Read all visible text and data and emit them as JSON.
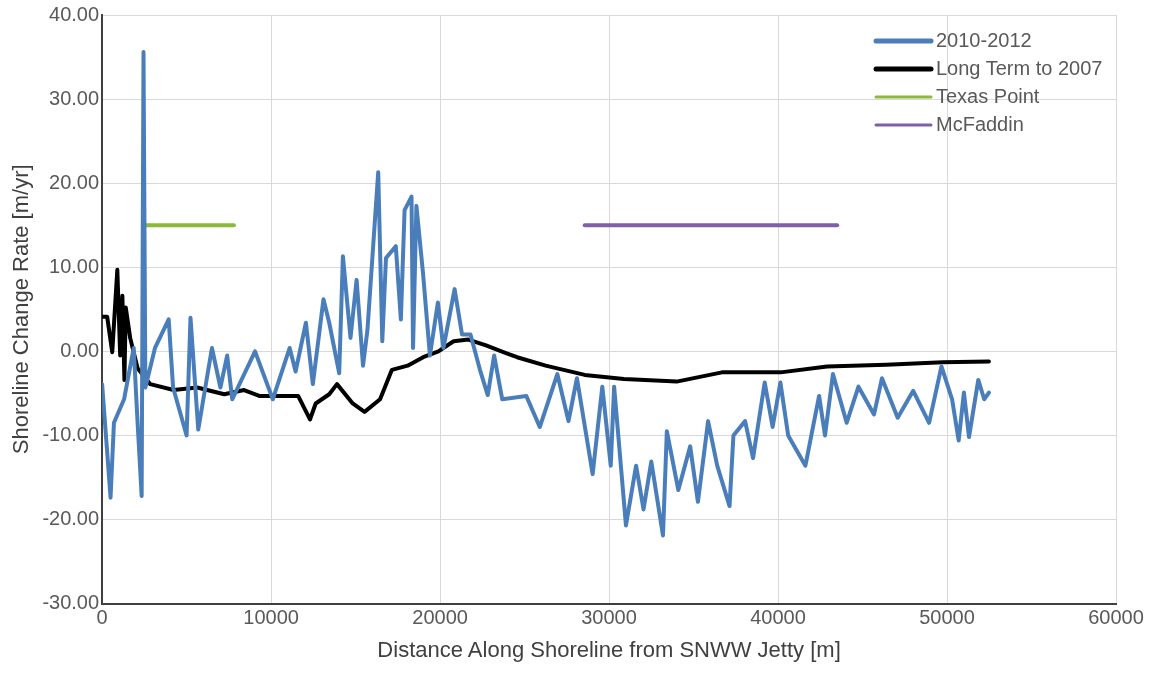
{
  "chart_data": {
    "type": "line",
    "xlabel": "Distance Along Shoreline from SNWW Jetty [m]",
    "ylabel": "Shoreline Change Rate [m/yr]",
    "xlim": [
      0,
      60000
    ],
    "xticks": [
      0,
      10000,
      20000,
      30000,
      40000,
      50000,
      60000
    ],
    "ylim": [
      -30,
      40
    ],
    "yticks": [
      {
        "value": -30,
        "label": "-30.00"
      },
      {
        "value": -20,
        "label": "-20.00"
      },
      {
        "value": -10,
        "label": "-10.00"
      },
      {
        "value": 0,
        "label": "0.00"
      },
      {
        "value": 10,
        "label": "10.00"
      },
      {
        "value": 20,
        "label": "20.00"
      },
      {
        "value": 30,
        "label": "30.00"
      },
      {
        "value": 40,
        "label": "40.00"
      }
    ],
    "grid": true,
    "legend": "top right",
    "marker": "none",
    "line_style": "solid",
    "series": [
      {
        "name": "2010-2012",
        "color": "#4a7ebb",
        "x": [
          0,
          500,
          700,
          1300,
          1870,
          2100,
          2340,
          2450,
          2560,
          3130,
          3940,
          4200,
          5000,
          5230,
          5690,
          6500,
          7000,
          7400,
          7700,
          9050,
          10100,
          11100,
          11450,
          12060,
          12470,
          13100,
          13440,
          14030,
          14250,
          14700,
          15060,
          15440,
          15700,
          16340,
          16580,
          16800,
          17380,
          17680,
          17900,
          18310,
          18400,
          18600,
          18990,
          19400,
          19870,
          20200,
          20860,
          21300,
          21800,
          22360,
          22820,
          23200,
          23680,
          25100,
          25900,
          26940,
          27600,
          28100,
          29030,
          29600,
          30100,
          30300,
          31000,
          31600,
          32040,
          32500,
          33190,
          33420,
          34100,
          34800,
          35260,
          35860,
          36400,
          37130,
          37360,
          38050,
          38520,
          39210,
          39680,
          40140,
          40600,
          41620,
          42430,
          42780,
          43250,
          44060,
          44760,
          45680,
          46150,
          47080,
          48000,
          48940,
          49670,
          50300,
          50690,
          51000,
          51300,
          51850,
          52200,
          52480
        ],
        "values": [
          -3.9,
          -17.4,
          -8.5,
          -5.7,
          0.4,
          -8.5,
          -17.2,
          35.6,
          -4.3,
          0.4,
          3.8,
          -4.3,
          -10,
          4,
          -9.3,
          0.4,
          -4.3,
          -0.5,
          -5.7,
          0,
          -5.7,
          0.4,
          -2.4,
          3.4,
          -3.9,
          6.2,
          3.4,
          -2.6,
          11.3,
          1.6,
          8.5,
          -1.7,
          2.5,
          21.3,
          1.2,
          11.1,
          12.5,
          3.8,
          16.8,
          18.4,
          0.4,
          17.3,
          9.3,
          -0.5,
          5.8,
          0.4,
          7.4,
          2,
          2,
          -2.2,
          -5.2,
          -0.5,
          -5.7,
          -5.3,
          -9,
          -2.7,
          -8.3,
          -3.2,
          -14.6,
          -4.2,
          -13.6,
          -4.2,
          -20.7,
          -13.6,
          -18.8,
          -13.1,
          -21.9,
          -9.5,
          -16.5,
          -11.3,
          -17.9,
          -8.3,
          -13.6,
          -18.4,
          -10,
          -8.3,
          -12.7,
          -3.7,
          -9,
          -3.7,
          -10,
          -13.6,
          -5.3,
          -10,
          -2.7,
          -8.5,
          -4.2,
          -7.5,
          -3.2,
          -7.9,
          -4.7,
          -8.5,
          -1.8,
          -5.7,
          -10.6,
          -4.9,
          -10.2,
          -3.4,
          -5.7,
          -4.9
        ]
      },
      {
        "name": "Long Term to 2007",
        "color": "#000000",
        "x": [
          0,
          300,
          600,
          900,
          1070,
          1200,
          1320,
          1400,
          1660,
          2100,
          2850,
          4230,
          5620,
          7230,
          8400,
          9300,
          11600,
          12300,
          12640,
          13440,
          13900,
          14830,
          15530,
          16450,
          17150,
          18080,
          19000,
          19900,
          20800,
          21670,
          22720,
          23630,
          24560,
          26250,
          28560,
          30880,
          34000,
          36680,
          40150,
          42900,
          46400,
          49750,
          52480
        ],
        "values": [
          4.1,
          4.1,
          -0.1,
          9.7,
          -0.5,
          6.6,
          -3.4,
          5.2,
          1.6,
          -2,
          -3.9,
          -4.6,
          -4.3,
          -5.1,
          -4.6,
          -5.3,
          -5.3,
          -8.1,
          -6.2,
          -5.1,
          -3.9,
          -6.2,
          -7.2,
          -5.7,
          -2.2,
          -1.7,
          -0.7,
          0,
          1.2,
          1.4,
          0.7,
          0,
          -0.7,
          -1.7,
          -2.8,
          -3.3,
          -3.6,
          -2.5,
          -2.5,
          -1.8,
          -1.6,
          -1.3,
          -1.2
        ]
      },
      {
        "name": "Texas Point",
        "color": "#8cb83c",
        "x": [
          2500,
          7800
        ],
        "values": [
          15,
          15
        ]
      },
      {
        "name": "McFaddin",
        "color": "#7f5fa8",
        "x": [
          28560,
          43500
        ],
        "values": [
          15,
          15
        ]
      }
    ]
  }
}
